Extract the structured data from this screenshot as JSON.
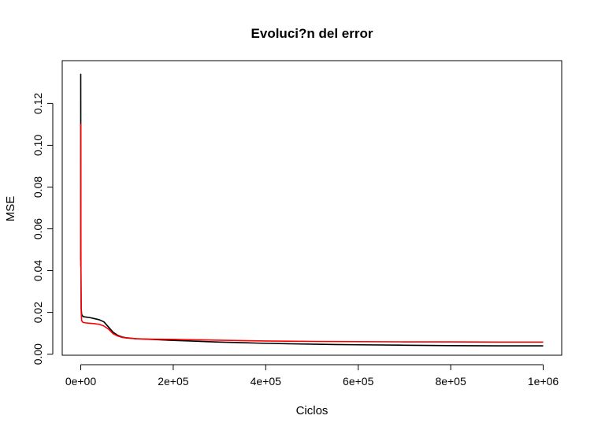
{
  "chart_data": {
    "type": "line",
    "title": "Evoluci?n del error",
    "xlabel": "Ciclos",
    "ylabel": "MSE",
    "xlim": [
      -40000,
      1040000
    ],
    "ylim": [
      -0.0005,
      0.1405
    ],
    "x_ticks": [
      0,
      200000,
      400000,
      600000,
      800000,
      1000000
    ],
    "x_tick_labels": [
      "0e+00",
      "2e+05",
      "4e+05",
      "6e+05",
      "8e+05",
      "1e+06"
    ],
    "y_ticks": [
      0.0,
      0.02,
      0.04,
      0.06,
      0.08,
      0.1,
      0.12
    ],
    "y_tick_labels": [
      "0.00",
      "0.02",
      "0.04",
      "0.06",
      "0.08",
      "0.10",
      "0.12"
    ],
    "grid": false,
    "series": [
      {
        "color": "#000000",
        "x": [
          0,
          0,
          500,
          1000,
          2000,
          5000,
          10000,
          20000,
          30000,
          40000,
          50000,
          60000,
          70000,
          80000,
          90000,
          100000,
          120000,
          150000,
          200000,
          250000,
          300000,
          350000,
          400000,
          450000,
          500000,
          550000,
          600000,
          700000,
          750000,
          800000,
          900000,
          1000000
        ],
        "y": [
          0.045,
          0.134,
          0.04,
          0.022,
          0.019,
          0.018,
          0.0178,
          0.0175,
          0.017,
          0.0165,
          0.0155,
          0.013,
          0.0105,
          0.009,
          0.0082,
          0.0078,
          0.0074,
          0.0071,
          0.0066,
          0.0062,
          0.0058,
          0.0055,
          0.0052,
          0.005,
          0.0048,
          0.0046,
          0.0045,
          0.0043,
          0.0042,
          0.0041,
          0.004,
          0.004
        ]
      },
      {
        "color": "#ff0000",
        "x": [
          0,
          0,
          500,
          1000,
          2000,
          5000,
          10000,
          20000,
          30000,
          40000,
          50000,
          60000,
          70000,
          80000,
          90000,
          100000,
          120000,
          150000,
          200000,
          250000,
          300000,
          350000,
          400000,
          450000,
          500000,
          600000,
          700000,
          800000,
          900000,
          1000000
        ],
        "y": [
          0.042,
          0.11,
          0.03,
          0.02,
          0.016,
          0.0152,
          0.015,
          0.0148,
          0.0146,
          0.0143,
          0.0135,
          0.012,
          0.0098,
          0.0087,
          0.008,
          0.0077,
          0.0074,
          0.0072,
          0.0071,
          0.0069,
          0.0067,
          0.0065,
          0.0063,
          0.0062,
          0.0061,
          0.006,
          0.0059,
          0.0059,
          0.0058,
          0.0058
        ]
      }
    ]
  }
}
